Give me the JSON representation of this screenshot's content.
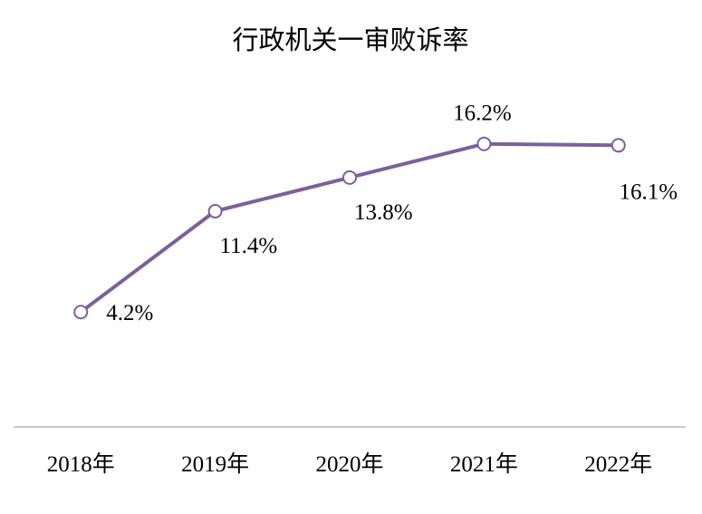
{
  "chart_data": {
    "type": "line",
    "title": "行政机关一审败诉率",
    "xlabel": "",
    "ylabel": "",
    "categories": [
      "2018年",
      "2019年",
      "2020年",
      "2021年",
      "2022年"
    ],
    "series": [
      {
        "values": [
          4.2,
          11.4,
          13.8,
          16.2,
          16.1
        ],
        "labels": [
          "4.2%",
          "11.4%",
          "13.8%",
          "16.2%",
          "16.1%"
        ],
        "color": "#7b619c"
      }
    ],
    "ylim": [
      -4,
      20
    ],
    "grid": false,
    "legend": "none",
    "axis_color": "#a6a6a6",
    "marker_fill": "#ffffff"
  }
}
